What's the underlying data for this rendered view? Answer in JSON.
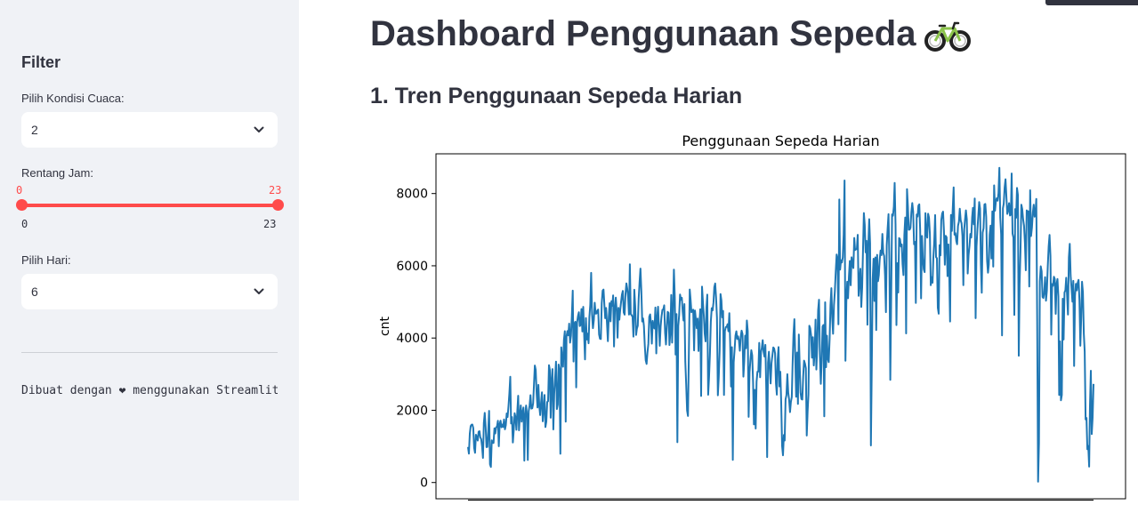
{
  "sidebar": {
    "filter_title": "Filter",
    "weather": {
      "label": "Pilih Kondisi Cuaca:",
      "value": "2"
    },
    "hours": {
      "label": "Rentang Jam:",
      "min_value": "0",
      "max_value": "23",
      "min_tick": "0",
      "max_tick": "23",
      "range_min": 0,
      "range_max": 23,
      "accent": "#ff4b4b"
    },
    "day": {
      "label": "Pilih Hari:",
      "value": "6"
    },
    "footer": "Dibuat dengan ❤ menggunakan Streamlit"
  },
  "main": {
    "title": "Dashboard Penggunaan Sepeda",
    "title_icon": "bicycle-icon",
    "section1_title": "1. Tren Penggunaan Sepeda Harian"
  },
  "chart_data": {
    "type": "line",
    "title": "Penggunaan Sepeda Harian",
    "xlabel": "",
    "ylabel": "cnt",
    "yticks": [
      0,
      2000,
      4000,
      6000,
      8000
    ],
    "ylim": [
      -450,
      9100
    ],
    "color": "#1f77b4",
    "x_tick_labels_overlapping": true,
    "values": [
      985,
      801,
      1349,
      1562,
      1600,
      1606,
      1510,
      959,
      822,
      1321,
      1263,
      1162,
      1406,
      1421,
      1248,
      1204,
      1000,
      683,
      1650,
      1927,
      1543,
      981,
      986,
      1416,
      1985,
      506,
      431,
      1167,
      1098,
      1096,
      1501,
      1360,
      1526,
      1550,
      1708,
      1005,
      1623,
      1712,
      1530,
      1605,
      1538,
      1746,
      1472,
      1589,
      1913,
      1815,
      2115,
      2475,
      2927,
      1635,
      1812,
      1107,
      1450,
      1917,
      1807,
      1461,
      1969,
      2402,
      1446,
      1851,
      2134,
      1685,
      1944,
      2077,
      605,
      1872,
      2133,
      1891,
      623,
      1977,
      2132,
      2417,
      2046,
      2056,
      2192,
      2744,
      3239,
      3117,
      2471,
      2077,
      2703,
      2121,
      1865,
      2210,
      2496,
      1693,
      2028,
      2425,
      1536,
      1685,
      2227,
      2252,
      3249,
      3115,
      1795,
      2808,
      3141,
      1471,
      2455,
      2895,
      3348,
      2034,
      2162,
      3267,
      3126,
      795,
      3744,
      3429,
      3204,
      3944,
      4189,
      1683,
      4036,
      4191,
      4073,
      4400,
      3872,
      4058,
      4595,
      5312,
      3351,
      4401,
      4451,
      2633,
      4433,
      4608,
      4714,
      4333,
      4362,
      4803,
      4182,
      4864,
      4105,
      3409,
      4553,
      3958,
      4123,
      3855,
      4575,
      4917,
      5805,
      4660,
      4274,
      4492,
      4978,
      4677,
      4679,
      4758,
      4788,
      4098,
      3982,
      3974,
      4968,
      5312,
      5342,
      4906,
      4548,
      4833,
      4401,
      3915,
      4586,
      4966,
      4460,
      5020,
      4891,
      5180,
      3767,
      4844,
      5119,
      4744,
      4010,
      4835,
      4507,
      4790,
      4991,
      5202,
      5305,
      4708,
      4648,
      5225,
      5515,
      5362,
      5119,
      4649,
      6043,
      4665,
      4629,
      4592,
      4040,
      5336,
      4881,
      4086,
      4258,
      4342,
      5084,
      5538,
      5923,
      5302,
      4458,
      4541,
      4332,
      3784,
      3387,
      3285,
      3606,
      3840,
      4590,
      4656,
      4390,
      3846,
      4475,
      4302,
      4266,
      4845,
      3574,
      4576,
      4866,
      4294,
      3785,
      4326,
      4602,
      4780,
      4792,
      4905,
      4150,
      3820,
      4338,
      4725,
      4694,
      3805,
      4153,
      5191,
      3873,
      4758,
      5895,
      5130,
      3542,
      4661,
      1115,
      4334,
      4634,
      5204,
      5058,
      5115,
      4727,
      4484,
      4940,
      3351,
      2710,
      1996,
      1842,
      3544,
      5345,
      5046,
      4713,
      4763,
      4785,
      3659,
      4760,
      4511,
      4274,
      4539,
      3641,
      4352,
      4795,
      2395,
      5423,
      5010,
      4630,
      4120,
      3907,
      4839,
      5202,
      2429,
      2918,
      3570,
      4456,
      4826,
      4765,
      4985,
      5409,
      5511,
      5117,
      4563,
      2416,
      2913,
      3644,
      5217,
      5041,
      4570,
      4748,
      2424,
      4195,
      4304,
      4308,
      4381,
      4187,
      4687,
      3894,
      2659,
      3747,
      627,
      3331,
      3669,
      4068,
      4186,
      3974,
      4046,
      3926,
      3649,
      4035,
      4205,
      4109,
      2933,
      3368,
      4067,
      3717,
      4486,
      4195,
      1817,
      3053,
      3392,
      3663,
      3520,
      2765,
      1607,
      2566,
      1495,
      2792,
      3068,
      3071,
      3867,
      2914,
      3613,
      3727,
      3940,
      3614,
      3485,
      3811,
      2594,
      705,
      3322,
      3620,
      3190,
      2743,
      3310,
      3523,
      3740,
      3709,
      3577,
      2739,
      2431,
      3403,
      3750,
      2660,
      3068,
      2209,
      1011,
      754,
      1317,
      1162,
      2302,
      2423,
      2999,
      2485,
      2294,
      1951,
      2236,
      2368,
      3272,
      4098,
      4521,
      3425,
      2376,
      3598,
      2177,
      4097,
      3214,
      2493,
      2311,
      2298,
      2935,
      3376,
      3292,
      3163,
      1301,
      1977,
      2432,
      4339,
      4270,
      4075,
      3456,
      4023,
      3243,
      3624,
      4509,
      3129,
      3777,
      4773,
      5062,
      3487,
      2732,
      3389,
      4322,
      4363,
      1834,
      4990,
      3194,
      4066,
      3423,
      3333,
      3956,
      4916,
      5382,
      4569,
      4118,
      4911,
      5298,
      5847,
      6312,
      6192,
      4378,
      7836,
      5892,
      6153,
      6093,
      6230,
      6871,
      8362,
      3372,
      4996,
      5558,
      5102,
      5698,
      6133,
      5459,
      6235,
      6041,
      5936,
      6772,
      6436,
      6457,
      6460,
      6857,
      5169,
      5585,
      5918,
      4862,
      5409,
      6398,
      7460,
      7132,
      6370,
      6691,
      4367,
      6565,
      7290,
      6624,
      1027,
      3214,
      5633,
      6196,
      5026,
      6233,
      4220,
      6304,
      5572,
      5740,
      6169,
      6421,
      6296,
      6883,
      6359,
      6273,
      5728,
      4717,
      6572,
      7030,
      7429,
      6118,
      2843,
      5115,
      7424,
      7384,
      7639,
      8294,
      7129,
      4359,
      6073,
      5260,
      6770,
      6734,
      6536,
      6591,
      6043,
      5743,
      6855,
      7338,
      4127,
      8120,
      7641,
      6998,
      7001,
      7055,
      7494,
      7736,
      7498,
      6598,
      6664,
      4972,
      7421,
      7363,
      7665,
      7702,
      6978,
      5099,
      6825,
      6211,
      5905,
      5823,
      7458,
      6891,
      6779,
      7442,
      7335,
      6879,
      5463,
      5687,
      5531,
      6227,
      6660,
      7403,
      6241,
      6207,
      4840,
      4672,
      6569,
      6290,
      7264,
      7446,
      7499,
      6969,
      6031,
      6830,
      6786,
      5713,
      6591,
      5870,
      4459,
      7410,
      6966,
      7592,
      8173,
      6861,
      6904,
      6685,
      6597,
      7105,
      7216,
      7580,
      7261,
      7175,
      6824,
      5464,
      7013,
      7273,
      7534,
      7286,
      5786,
      6299,
      6544,
      6883,
      6784,
      7347,
      7605,
      7148,
      7865,
      4549,
      6530,
      7006,
      7375,
      7765,
      7582,
      6053,
      5255,
      6917,
      7040,
      7697,
      7713,
      7350,
      6140,
      5810,
      6034,
      6864,
      7112,
      6203,
      7504,
      5976,
      8227,
      7525,
      7767,
      7870,
      7804,
      8009,
      8714,
      7333,
      6869,
      4073,
      7591,
      7720,
      8167,
      8395,
      7907,
      7436,
      7538,
      7733,
      7393,
      7415,
      8555,
      6889,
      6778,
      4639,
      7572,
      7328,
      8156,
      7965,
      3510,
      5478,
      6392,
      7691,
      7570,
      7282,
      7109,
      6639,
      5875,
      7534,
      7461,
      7509,
      5424,
      8090,
      6824,
      7058,
      7466,
      7693,
      7359,
      7444,
      7852,
      4459,
      22,
      1096,
      5566,
      5986,
      5847,
      5138,
      5107,
      5259,
      5686,
      5035,
      5315,
      5992,
      6536,
      6852,
      6269,
      4094,
      5495,
      5445,
      5698,
      5629,
      4669,
      5499,
      5634,
      5146,
      2425,
      3910,
      2277,
      2424,
      5087,
      3959,
      5260,
      5323,
      5668,
      5191,
      4649,
      6234,
      6606,
      5729,
      5375,
      5008,
      5582,
      3228,
      5170,
      5501,
      5319,
      5532,
      5611,
      5047,
      3786,
      4585,
      5557,
      5267,
      4128,
      3623,
      1749,
      1787,
      920,
      1013,
      441,
      2114,
      3095,
      1341,
      1796,
      2729
    ]
  }
}
